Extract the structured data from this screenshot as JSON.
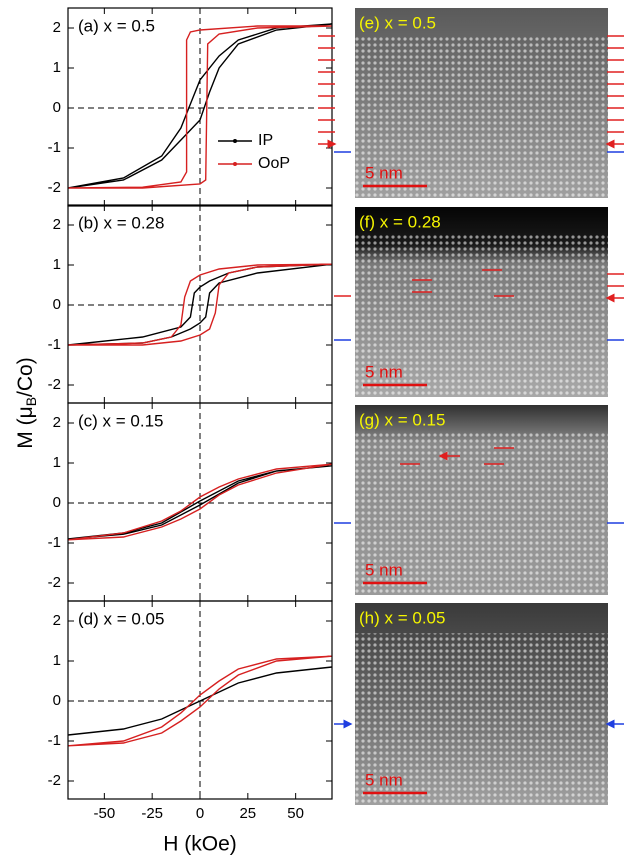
{
  "figure": {
    "xlabel": "H (kOe)",
    "ylabel": [
      "M (μ",
      "B",
      "/Co)"
    ]
  },
  "chart_data": [
    {
      "type": "line",
      "title": "(a) x = 0.5",
      "xlim": [
        -69,
        69
      ],
      "ylim": [
        -2.45,
        2.5
      ],
      "xticks": [
        -50,
        -25,
        0,
        25,
        50
      ],
      "yticks": [
        -2,
        -1,
        0,
        1,
        2
      ],
      "legend": "right",
      "series": [
        {
          "name": "IP",
          "color": "#000000",
          "x": [
            69,
            40,
            20,
            10,
            0,
            -5,
            -10,
            -20,
            -40,
            -69,
            -40,
            -20,
            -10,
            0,
            5,
            10,
            20,
            40,
            69
          ],
          "values": [
            2.1,
            2.0,
            1.7,
            1.3,
            0.7,
            0.1,
            -0.5,
            -1.2,
            -1.75,
            -2.0,
            -1.8,
            -1.3,
            -0.8,
            -0.3,
            0.4,
            1.0,
            1.6,
            1.95,
            2.1
          ]
        },
        {
          "name": "OoP",
          "color": "#d62020",
          "x": [
            69,
            30,
            0,
            -5,
            -7,
            -7,
            -10,
            -30,
            -69,
            -30,
            0,
            3,
            4,
            10,
            30,
            69
          ],
          "values": [
            2.05,
            2.05,
            1.95,
            1.9,
            1.7,
            -1.6,
            -1.85,
            -1.98,
            -2.0,
            -2.0,
            -1.9,
            -1.8,
            1.6,
            1.85,
            2.0,
            2.05
          ]
        }
      ]
    },
    {
      "type": "line",
      "title": "(b) x = 0.28",
      "xlim": [
        -69,
        69
      ],
      "ylim": [
        -2.45,
        2.5
      ],
      "xticks": [
        -50,
        -25,
        0,
        25,
        50
      ],
      "yticks": [
        -2,
        -1,
        0,
        1,
        2
      ],
      "series": [
        {
          "color": "#000000",
          "x": [
            69,
            30,
            15,
            5,
            0,
            -3,
            -5,
            -10,
            -30,
            -69,
            -30,
            -15,
            -5,
            0,
            3,
            5,
            10,
            30,
            69
          ],
          "values": [
            1.02,
            0.95,
            0.8,
            0.6,
            0.45,
            0.3,
            -0.3,
            -0.55,
            -0.8,
            -1.0,
            -0.95,
            -0.8,
            -0.6,
            -0.45,
            -0.3,
            0.3,
            0.55,
            0.8,
            1.02
          ]
        },
        {
          "color": "#d62020",
          "x": [
            69,
            30,
            10,
            0,
            -5,
            -8,
            -10,
            -15,
            -30,
            -69,
            -30,
            -10,
            0,
            5,
            8,
            10,
            15,
            30,
            69
          ],
          "values": [
            1.02,
            1.0,
            0.9,
            0.75,
            0.6,
            0.2,
            -0.5,
            -0.8,
            -0.95,
            -1.0,
            -1.0,
            -0.9,
            -0.75,
            -0.6,
            -0.2,
            0.5,
            0.8,
            0.95,
            1.02
          ]
        }
      ]
    },
    {
      "type": "line",
      "title": "(c) x = 0.15",
      "xlim": [
        -69,
        69
      ],
      "ylim": [
        -2.45,
        2.5
      ],
      "xticks": [
        -50,
        -25,
        0,
        25,
        50
      ],
      "yticks": [
        -2,
        -1,
        0,
        1,
        2
      ],
      "series": [
        {
          "color": "#000000",
          "x": [
            69,
            40,
            20,
            0,
            -20,
            -40,
            -69,
            -40,
            -20,
            0,
            20,
            40,
            69
          ],
          "values": [
            0.93,
            0.8,
            0.55,
            0.05,
            -0.5,
            -0.75,
            -0.9,
            -0.78,
            -0.55,
            -0.05,
            0.5,
            0.8,
            0.93
          ]
        },
        {
          "color": "#d62020",
          "x": [
            69,
            40,
            20,
            10,
            0,
            -10,
            -20,
            -40,
            -69,
            -40,
            -20,
            -10,
            0,
            10,
            20,
            40,
            69
          ],
          "values": [
            0.97,
            0.85,
            0.6,
            0.4,
            0.15,
            -0.2,
            -0.45,
            -0.75,
            -0.92,
            -0.85,
            -0.6,
            -0.4,
            -0.15,
            0.2,
            0.45,
            0.75,
            0.97
          ]
        }
      ]
    },
    {
      "type": "line",
      "title": "(d) x = 0.05",
      "xlim": [
        -69,
        69
      ],
      "ylim": [
        -2.45,
        2.5
      ],
      "xticks": [
        -50,
        -25,
        0,
        25,
        50
      ],
      "yticks": [
        -2,
        -1,
        0,
        1,
        2
      ],
      "series": [
        {
          "color": "#000000",
          "x": [
            69,
            40,
            20,
            0,
            -20,
            -40,
            -69
          ],
          "values": [
            0.85,
            0.7,
            0.45,
            0.0,
            -0.45,
            -0.7,
            -0.85
          ]
        },
        {
          "color": "#d62020",
          "x": [
            69,
            40,
            20,
            10,
            0,
            -10,
            -20,
            -40,
            -69,
            -40,
            -20,
            -10,
            0,
            10,
            20,
            40,
            69
          ],
          "values": [
            1.12,
            1.05,
            0.8,
            0.5,
            0.15,
            -0.3,
            -0.65,
            -1.0,
            -1.12,
            -1.05,
            -0.8,
            -0.5,
            -0.15,
            0.3,
            0.65,
            1.0,
            1.12
          ]
        }
      ]
    }
  ],
  "images": [
    {
      "label": "(e) x = 0.5",
      "scale_bar": "5 nm"
    },
    {
      "label": "(f) x = 0.28",
      "scale_bar": "5 nm"
    },
    {
      "label": "(g) x = 0.15",
      "scale_bar": "5 nm"
    },
    {
      "label": "(h) x = 0.05",
      "scale_bar": "5 nm"
    }
  ]
}
